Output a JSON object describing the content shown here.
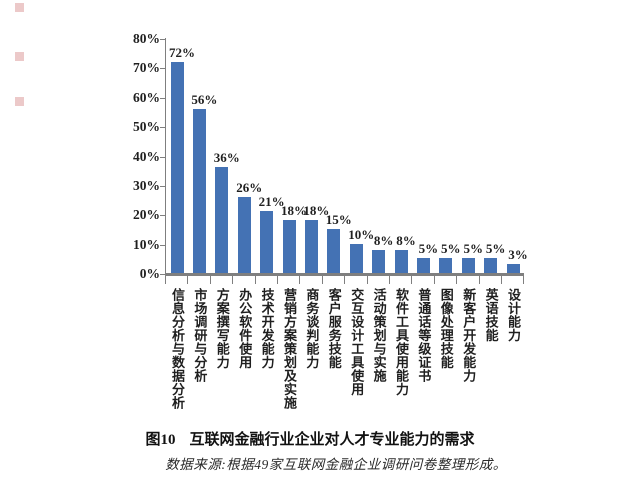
{
  "figure": {
    "caption_label": "图10",
    "caption_text": "互联网金融行业企业对人才专业能力的需求",
    "source_note": "数据来源:根据49家互联网金融企业调研问卷整理形成。"
  },
  "chart_data": {
    "type": "bar",
    "title": "图10 互联网金融行业企业对人才专业能力的需求",
    "source": "数据来源:根据49家互联网金融企业调研问卷整理形成。",
    "categories": [
      "信息分析与数据分析",
      "市场调研与分析",
      "方案撰写能力",
      "办公软件使用",
      "技术开发能力",
      "营销方案策划及实施",
      "商务谈判能力",
      "客户服务技能",
      "交互设计工具使用",
      "活动策划与实施",
      "软件工具使用能力",
      "普通话等级证书",
      "图像处理技能",
      "新客户开发能力",
      "英语技能",
      "设计能力"
    ],
    "values": [
      72,
      56,
      36,
      26,
      21,
      18,
      18,
      15,
      10,
      8,
      8,
      5,
      5,
      5,
      5,
      3
    ],
    "unit": "%",
    "xlabel": "",
    "ylabel": "",
    "ylim": [
      0,
      80
    ],
    "y_tick_step": 10,
    "y_ticks": [
      "0%",
      "10%",
      "20%",
      "30%",
      "40%",
      "50%",
      "60%",
      "70%",
      "80%"
    ],
    "grid": false,
    "legend": false,
    "data_labels": true,
    "bar_color": "#4472b4",
    "axis_color": "#7f7f7f",
    "label_color": "#1f1f1f"
  },
  "decorations": {
    "artifact_marks_color": "#ecc9c9"
  }
}
